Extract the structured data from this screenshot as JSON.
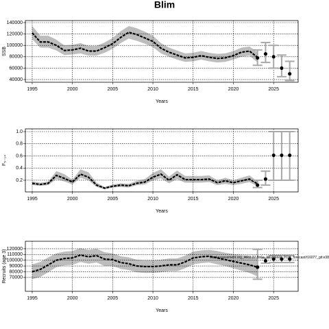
{
  "chart_data": [
    {
      "type": "line",
      "title": "Blim",
      "ylabel": "SSB",
      "xlabel": "Years",
      "x": [
        1995,
        1996,
        1997,
        1998,
        1999,
        2000,
        2001,
        2002,
        2003,
        2004,
        2005,
        2006,
        2007,
        2008,
        2009,
        2010,
        2011,
        2012,
        2013,
        2014,
        2015,
        2016,
        2017,
        2018,
        2019,
        2020,
        2021,
        2022,
        2023
      ],
      "estimate": [
        122000,
        106000,
        106000,
        100000,
        91000,
        92000,
        95000,
        90000,
        90000,
        96000,
        103000,
        114000,
        123000,
        119000,
        113000,
        107000,
        95000,
        88000,
        83000,
        78000,
        79000,
        82000,
        79000,
        77000,
        78000,
        82000,
        88000,
        90000,
        79000
      ],
      "upper": [
        134000,
        117000,
        117000,
        110000,
        100000,
        101000,
        104000,
        99000,
        99000,
        105000,
        113000,
        125000,
        134000,
        130000,
        124000,
        117000,
        104000,
        96000,
        91000,
        86000,
        87000,
        90000,
        87000,
        85000,
        86000,
        90000,
        96000,
        98000,
        88000
      ],
      "lower": [
        111000,
        96000,
        96000,
        91000,
        83000,
        84000,
        86000,
        82000,
        82000,
        87000,
        94000,
        104000,
        112000,
        108000,
        103000,
        97000,
        86000,
        80000,
        75000,
        71000,
        72000,
        75000,
        72000,
        70000,
        71000,
        75000,
        80000,
        82000,
        70000
      ],
      "forecast": {
        "x": [
          2023,
          2024,
          2025,
          2026,
          2027
        ],
        "values": [
          78000,
          85000,
          80000,
          60000,
          50000
        ],
        "low": [
          65000,
          70000,
          60000,
          45000,
          38000
        ],
        "high": [
          92000,
          105000,
          100000,
          83000,
          72000
        ]
      },
      "xlim": [
        1994.15,
        2028.05
      ],
      "xticks": [
        1995,
        2000,
        2005,
        2010,
        2015,
        2020,
        2025
      ],
      "ylim": [
        35200,
        143600
      ],
      "yticks": [
        40000,
        60000,
        80000,
        100000,
        120000,
        140000
      ],
      "grid": true,
      "line_color": "#000000",
      "band_color": "#bdbdbd",
      "errorbar_color": "#a8a8a8"
    },
    {
      "type": "line",
      "ylabel": "F₅₋₁₄",
      "xlabel": "Years",
      "x": [
        1995,
        1996,
        1997,
        1998,
        1999,
        2000,
        2001,
        2002,
        2003,
        2004,
        2005,
        2006,
        2007,
        2008,
        2009,
        2010,
        2011,
        2012,
        2013,
        2014,
        2015,
        2016,
        2017,
        2018,
        2019,
        2020,
        2021,
        2022,
        2023
      ],
      "estimate": [
        0.15,
        0.13,
        0.15,
        0.28,
        0.23,
        0.17,
        0.3,
        0.25,
        0.12,
        0.07,
        0.1,
        0.12,
        0.11,
        0.15,
        0.17,
        0.25,
        0.3,
        0.2,
        0.29,
        0.21,
        0.21,
        0.21,
        0.22,
        0.16,
        0.19,
        0.16,
        0.19,
        0.22,
        0.14
      ],
      "upper": [
        0.18,
        0.16,
        0.18,
        0.35,
        0.3,
        0.21,
        0.38,
        0.33,
        0.16,
        0.09,
        0.13,
        0.15,
        0.14,
        0.19,
        0.22,
        0.32,
        0.38,
        0.26,
        0.36,
        0.27,
        0.27,
        0.27,
        0.28,
        0.2,
        0.24,
        0.2,
        0.24,
        0.28,
        0.18
      ],
      "lower": [
        0.12,
        0.11,
        0.12,
        0.22,
        0.18,
        0.13,
        0.24,
        0.2,
        0.09,
        0.05,
        0.08,
        0.09,
        0.08,
        0.12,
        0.13,
        0.2,
        0.23,
        0.15,
        0.22,
        0.16,
        0.16,
        0.16,
        0.17,
        0.12,
        0.14,
        0.12,
        0.14,
        0.17,
        0.1
      ],
      "forecast": {
        "x": [
          2023,
          2024,
          2025,
          2026,
          2027
        ],
        "values": [
          0.12,
          0.22,
          0.61,
          0.61,
          0.61
        ],
        "low": [
          0.08,
          0.12,
          0.2,
          0.2,
          0.2
        ],
        "high": [
          0.2,
          0.35,
          1.0,
          1.0,
          1.0
        ]
      },
      "xlim": [
        1994.15,
        2028.05
      ],
      "xticks": [
        1995,
        2000,
        2005,
        2010,
        2015,
        2020,
        2025
      ],
      "ylim": [
        0.008,
        1.045
      ],
      "yticks": [
        0.2,
        0.4,
        0.6,
        0.8,
        {
          "value": 1,
          "label": "1.0"
        }
      ],
      "grid": true,
      "line_color": "#000000",
      "band_color": "#bdbdbd",
      "errorbar_color": "#a8a8a8"
    },
    {
      "type": "line",
      "ylabel": "Recruits (age 3)",
      "xlabel": "Years",
      "annotation": "stockassessment.org_ARU.27.5b6a_WGDEEP_2024_forecast/r16077_git:e38",
      "x": [
        1995,
        1996,
        1997,
        1998,
        1999,
        2000,
        2001,
        2002,
        2003,
        2004,
        2005,
        2006,
        2007,
        2008,
        2009,
        2010,
        2011,
        2012,
        2013,
        2014,
        2015,
        2016,
        2017,
        2018,
        2019,
        2020,
        2021,
        2022,
        2023
      ],
      "estimate": [
        80000,
        84000,
        92000,
        100000,
        103000,
        104000,
        109000,
        106000,
        108000,
        102000,
        101000,
        96000,
        94000,
        90000,
        89000,
        89000,
        90000,
        92000,
        92000,
        97000,
        104000,
        106000,
        107000,
        104000,
        101000,
        98000,
        95000,
        92000,
        88000
      ],
      "upper": [
        93000,
        97000,
        105000,
        112000,
        115000,
        116000,
        121000,
        118000,
        120000,
        114000,
        112000,
        107000,
        105000,
        101000,
        100000,
        100000,
        101000,
        103000,
        103000,
        108000,
        115000,
        117000,
        118000,
        116000,
        113000,
        111000,
        109000,
        107000,
        105000
      ],
      "lower": [
        67000,
        71000,
        79000,
        88000,
        91000,
        92000,
        97000,
        94000,
        96000,
        90000,
        90000,
        85000,
        83000,
        79000,
        78000,
        78000,
        79000,
        81000,
        81000,
        86000,
        93000,
        95000,
        96000,
        93000,
        90000,
        86000,
        82000,
        78000,
        72000
      ],
      "forecast": {
        "x": [
          2023,
          2024,
          2025,
          2026,
          2027
        ],
        "values": [
          88000,
          99000,
          102000,
          102000,
          102000
        ],
        "low": [
          67000,
          95000,
          96000,
          96000,
          96000
        ],
        "high": [
          119000,
          104000,
          108000,
          108000,
          108000
        ]
      },
      "xlim": [
        1994.15,
        2028.05
      ],
      "xticks": [
        1995,
        2000,
        2005,
        2010,
        2015,
        2020,
        2025
      ],
      "ylim": [
        46000,
        133000
      ],
      "yticks": [
        70000,
        80000,
        90000,
        100000,
        110000,
        120000
      ],
      "grid": true,
      "line_color": "#000000",
      "band_color": "#bdbdbd",
      "errorbar_color": "#a8a8a8"
    }
  ]
}
